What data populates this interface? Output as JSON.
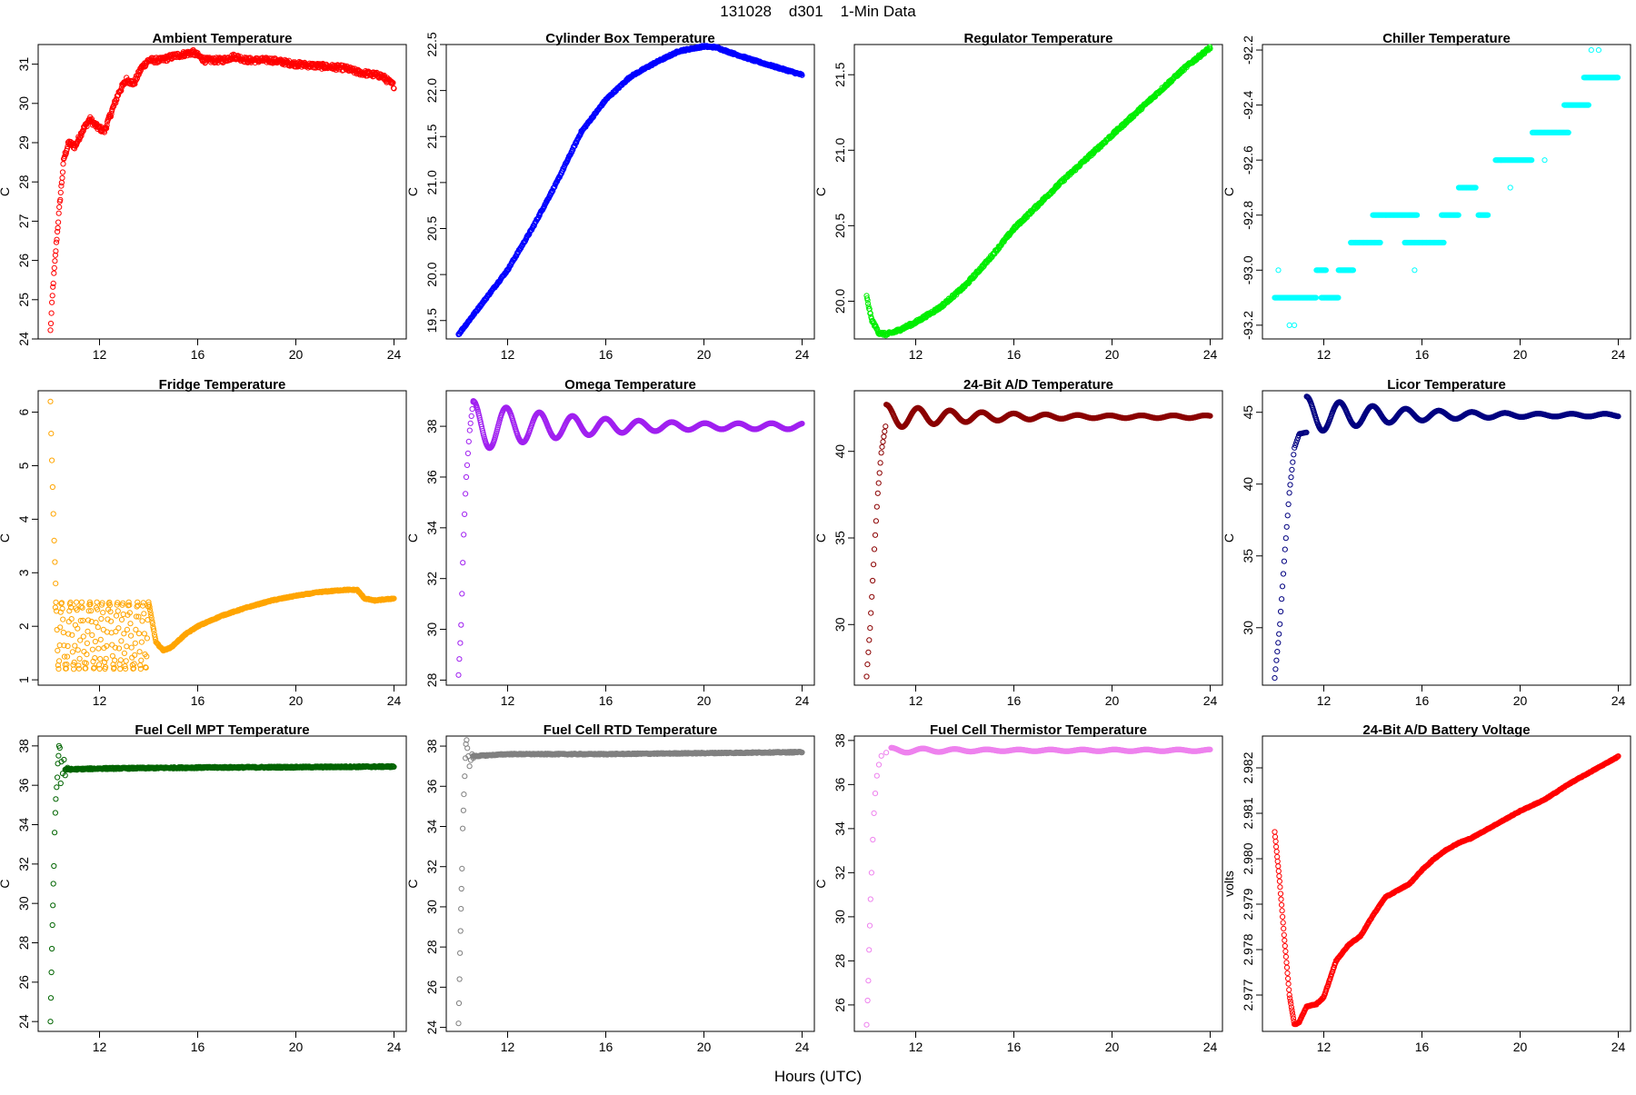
{
  "figure": {
    "title": "131028    d301    1-Min Data",
    "xlabel": "Hours (UTC)"
  },
  "chart_data": [
    {
      "type": "scatter",
      "title": "Ambient Temperature",
      "ylabel": "C",
      "color": "#ff0000",
      "xlim": [
        9.5,
        24.5
      ],
      "ylim": [
        24.0,
        31.5
      ],
      "xticks": [
        12,
        16,
        20,
        24
      ],
      "yticks": [
        24,
        25,
        26,
        27,
        28,
        29,
        30,
        31
      ],
      "anchors": [
        [
          10,
          24.2
        ],
        [
          10.1,
          25.3
        ],
        [
          10.25,
          26.5
        ],
        [
          10.4,
          27.6
        ],
        [
          10.55,
          28.6
        ],
        [
          10.75,
          29.0
        ],
        [
          11.0,
          28.9
        ],
        [
          11.3,
          29.3
        ],
        [
          11.6,
          29.6
        ],
        [
          11.9,
          29.4
        ],
        [
          12.2,
          29.3
        ],
        [
          12.5,
          29.8
        ],
        [
          12.8,
          30.3
        ],
        [
          13.1,
          30.6
        ],
        [
          13.4,
          30.5
        ],
        [
          13.7,
          30.9
        ],
        [
          14.0,
          31.1
        ],
        [
          14.5,
          31.1
        ],
        [
          15.0,
          31.2
        ],
        [
          15.8,
          31.3
        ],
        [
          16.3,
          31.1
        ],
        [
          17.0,
          31.1
        ],
        [
          17.5,
          31.2
        ],
        [
          18.0,
          31.1
        ],
        [
          19.0,
          31.1
        ],
        [
          20.0,
          31.0
        ],
        [
          21.0,
          30.95
        ],
        [
          22.0,
          30.9
        ],
        [
          22.5,
          30.8
        ],
        [
          23.0,
          30.75
        ],
        [
          23.5,
          30.7
        ],
        [
          24.0,
          30.45
        ]
      ],
      "noise": 0.07
    },
    {
      "type": "scatter",
      "title": "Cylinder Box Temperature",
      "ylabel": "C",
      "color": "#0000ff",
      "xlim": [
        9.5,
        24.5
      ],
      "ylim": [
        19.3,
        22.5
      ],
      "xticks": [
        12,
        16,
        20,
        24
      ],
      "yticks": [
        19.5,
        20.0,
        20.5,
        21.0,
        21.5,
        22.0,
        22.5
      ],
      "yticklabels": [
        "19.5",
        "20.0",
        "20.5",
        "21.0",
        "21.5",
        "22.0",
        "22.5"
      ],
      "anchors": [
        [
          10,
          19.35
        ],
        [
          11,
          19.7
        ],
        [
          12,
          20.05
        ],
        [
          13,
          20.5
        ],
        [
          14,
          21.0
        ],
        [
          15,
          21.55
        ],
        [
          16,
          21.9
        ],
        [
          17,
          22.15
        ],
        [
          18,
          22.3
        ],
        [
          19,
          22.43
        ],
        [
          20,
          22.48
        ],
        [
          20.5,
          22.47
        ],
        [
          21,
          22.42
        ],
        [
          22,
          22.33
        ],
        [
          23,
          22.25
        ],
        [
          24,
          22.17
        ]
      ],
      "noise": 0.01
    },
    {
      "type": "scatter",
      "title": "Regulator Temperature",
      "ylabel": "C",
      "color": "#00ee00",
      "xlim": [
        9.5,
        24.5
      ],
      "ylim": [
        19.75,
        21.7
      ],
      "xticks": [
        12,
        16,
        20,
        24
      ],
      "yticks": [
        20.0,
        20.5,
        21.0,
        21.5
      ],
      "yticklabels": [
        "20.0",
        "20.5",
        "21.0",
        "21.5"
      ],
      "anchors": [
        [
          10,
          20.03
        ],
        [
          10.2,
          19.88
        ],
        [
          10.5,
          19.79
        ],
        [
          10.8,
          19.78
        ],
        [
          11.2,
          19.8
        ],
        [
          12,
          19.86
        ],
        [
          13,
          19.96
        ],
        [
          14,
          20.1
        ],
        [
          15,
          20.28
        ],
        [
          16,
          20.48
        ],
        [
          17,
          20.64
        ],
        [
          18,
          20.8
        ],
        [
          19,
          20.95
        ],
        [
          20,
          21.1
        ],
        [
          21,
          21.25
        ],
        [
          22,
          21.4
        ],
        [
          23,
          21.55
        ],
        [
          24,
          21.68
        ]
      ],
      "noise": 0.01
    },
    {
      "type": "scatter",
      "title": "Chiller Temperature",
      "ylabel": "C",
      "color": "#00ffff",
      "xlim": [
        9.5,
        24.5
      ],
      "ylim": [
        -93.25,
        -92.18
      ],
      "xticks": [
        12,
        16,
        20,
        24
      ],
      "yticks": [
        -93.2,
        -93.0,
        -92.8,
        -92.6,
        -92.4,
        -92.2
      ],
      "yticklabels": [
        "-93.2",
        "-93.0",
        "-92.8",
        "-92.6",
        "-92.4",
        "-92.2"
      ],
      "steps": [
        [
          10,
          11.7,
          -93.1
        ],
        [
          11.9,
          12.6,
          -93.1
        ],
        [
          11.7,
          12.1,
          -93.0
        ],
        [
          12.6,
          13.2,
          -93.0
        ],
        [
          13.1,
          14.3,
          -92.9
        ],
        [
          14.0,
          15.8,
          -92.8
        ],
        [
          15.3,
          16.9,
          -92.9
        ],
        [
          16.8,
          17.5,
          -92.8
        ],
        [
          17.5,
          18.2,
          -92.7
        ],
        [
          18.3,
          18.7,
          -92.8
        ],
        [
          19.0,
          20.5,
          -92.6
        ],
        [
          20.5,
          22.0,
          -92.5
        ],
        [
          21.8,
          22.8,
          -92.4
        ],
        [
          22.6,
          24,
          -92.3
        ]
      ],
      "outliers": [
        [
          10.15,
          -93.0
        ],
        [
          10.6,
          -93.2
        ],
        [
          10.8,
          -93.2
        ],
        [
          22.9,
          -92.2
        ],
        [
          23.2,
          -92.2
        ],
        [
          15.7,
          -93.0
        ],
        [
          19.6,
          -92.7
        ],
        [
          21.0,
          -92.6
        ]
      ]
    },
    {
      "type": "scatter",
      "title": "Fridge Temperature",
      "ylabel": "C",
      "color": "#ffa500",
      "xlim": [
        9.5,
        24.5
      ],
      "ylim": [
        0.9,
        6.4
      ],
      "xticks": [
        12,
        16,
        20,
        24
      ],
      "yticks": [
        1,
        2,
        3,
        4,
        5,
        6
      ],
      "initial": [
        [
          10,
          6.2
        ],
        [
          10.03,
          5.6
        ],
        [
          10.06,
          5.1
        ],
        [
          10.09,
          4.6
        ],
        [
          10.12,
          4.1
        ],
        [
          10.15,
          3.6
        ],
        [
          10.18,
          3.2
        ],
        [
          10.21,
          2.8
        ]
      ],
      "band": [
        10.2,
        14.0,
        1.2,
        2.45
      ],
      "anchors": [
        [
          14.0,
          2.45
        ],
        [
          14.3,
          1.7
        ],
        [
          14.6,
          1.55
        ],
        [
          14.9,
          1.6
        ],
        [
          15.5,
          1.85
        ],
        [
          16,
          2.0
        ],
        [
          17,
          2.2
        ],
        [
          18,
          2.35
        ],
        [
          19,
          2.48
        ],
        [
          20,
          2.57
        ],
        [
          21,
          2.64
        ],
        [
          22,
          2.68
        ],
        [
          22.5,
          2.68
        ],
        [
          22.8,
          2.52
        ],
        [
          23.2,
          2.48
        ],
        [
          24,
          2.52
        ]
      ],
      "noise": 0.01
    },
    {
      "type": "scatter",
      "title": "Omega Temperature",
      "ylabel": "C",
      "color": "#a020f0",
      "xlim": [
        9.5,
        24.5
      ],
      "ylim": [
        27.8,
        39.4
      ],
      "xticks": [
        12,
        16,
        20,
        24
      ],
      "yticks": [
        28,
        30,
        32,
        34,
        36,
        38
      ],
      "rise": [
        [
          10,
          28.2
        ],
        [
          10.1,
          30.0
        ],
        [
          10.2,
          33.5
        ],
        [
          10.3,
          35.8
        ],
        [
          10.45,
          37.8
        ],
        [
          10.6,
          39.0
        ]
      ],
      "damped": {
        "base": 38.0,
        "amp": 1.0,
        "period": 1.35,
        "decay": 4.5,
        "start": 10.6,
        "floor": 0.12
      }
    },
    {
      "type": "scatter",
      "title": "24-Bit A/D Temperature",
      "ylabel": "C",
      "color": "#8b0000",
      "xlim": [
        9.5,
        24.5
      ],
      "ylim": [
        26.5,
        43.5
      ],
      "xticks": [
        12,
        16,
        20,
        24
      ],
      "yticks": [
        30,
        35,
        40
      ],
      "rise": [
        [
          10,
          27.0
        ],
        [
          10.15,
          30.0
        ],
        [
          10.3,
          34.0
        ],
        [
          10.45,
          37.5
        ],
        [
          10.6,
          40.0
        ],
        [
          10.8,
          41.7
        ]
      ],
      "damped": {
        "base": 42.0,
        "amp": 0.7,
        "period": 1.3,
        "decay": 4.0,
        "start": 10.8,
        "floor": 0.08
      }
    },
    {
      "type": "scatter",
      "title": "Licor Temperature",
      "ylabel": "C",
      "color": "#000080",
      "xlim": [
        9.5,
        24.5
      ],
      "ylim": [
        26.0,
        46.5
      ],
      "xticks": [
        12,
        16,
        20,
        24
      ],
      "yticks": [
        30,
        35,
        40,
        45
      ],
      "rise": [
        [
          10,
          26.5
        ],
        [
          10.2,
          30.0
        ],
        [
          10.4,
          35.0
        ],
        [
          10.6,
          39.5
        ],
        [
          10.8,
          42.5
        ],
        [
          11.0,
          43.5
        ],
        [
          11.3,
          43.6
        ]
      ],
      "damped": {
        "base": 44.8,
        "amp": 1.3,
        "period": 1.35,
        "decay": 3.8,
        "start": 11.3,
        "floor": 0.1
      }
    },
    {
      "type": "scatter",
      "title": "Fuel Cell MPT Temperature",
      "ylabel": "C",
      "color": "#006400",
      "xlim": [
        9.5,
        24.5
      ],
      "ylim": [
        23.5,
        38.5
      ],
      "xticks": [
        12,
        16,
        20,
        24
      ],
      "yticks": [
        24,
        26,
        28,
        30,
        32,
        34,
        36,
        38
      ],
      "initial": [
        [
          10,
          24.0
        ],
        [
          10.02,
          25.2
        ],
        [
          10.04,
          26.5
        ],
        [
          10.06,
          27.7
        ],
        [
          10.08,
          28.9
        ],
        [
          10.1,
          29.9
        ],
        [
          10.12,
          31.0
        ],
        [
          10.14,
          31.9
        ],
        [
          10.17,
          33.6
        ],
        [
          10.2,
          34.6
        ],
        [
          10.22,
          35.3
        ],
        [
          10.25,
          35.9
        ],
        [
          10.28,
          36.4
        ],
        [
          10.3,
          37.1
        ],
        [
          10.33,
          37.5
        ],
        [
          10.35,
          38.0
        ],
        [
          10.38,
          37.9
        ],
        [
          10.42,
          36.1
        ],
        [
          10.45,
          37.2
        ],
        [
          10.5,
          36.6
        ],
        [
          10.55,
          37.3
        ],
        [
          10.6,
          36.5
        ],
        [
          10.7,
          36.9
        ]
      ],
      "anchors": [
        [
          10.6,
          36.8
        ],
        [
          12,
          36.85
        ],
        [
          16,
          36.9
        ],
        [
          20,
          36.92
        ],
        [
          24,
          36.95
        ]
      ],
      "noise": 0.04
    },
    {
      "type": "scatter",
      "title": "Fuel Cell RTD Temperature",
      "ylabel": "C",
      "color": "#808080",
      "xlim": [
        9.5,
        24.5
      ],
      "ylim": [
        23.8,
        38.5
      ],
      "xticks": [
        12,
        16,
        20,
        24
      ],
      "yticks": [
        24,
        26,
        28,
        30,
        32,
        34,
        36,
        38
      ],
      "initial": [
        [
          10,
          24.2
        ],
        [
          10.02,
          25.2
        ],
        [
          10.04,
          26.4
        ],
        [
          10.06,
          27.7
        ],
        [
          10.08,
          28.8
        ],
        [
          10.1,
          29.9
        ],
        [
          10.12,
          30.9
        ],
        [
          10.14,
          31.9
        ],
        [
          10.17,
          33.9
        ],
        [
          10.2,
          34.8
        ],
        [
          10.22,
          35.6
        ],
        [
          10.25,
          36.5
        ],
        [
          10.28,
          37.4
        ],
        [
          10.3,
          38.1
        ],
        [
          10.33,
          38.3
        ],
        [
          10.36,
          37.9
        ],
        [
          10.4,
          37.5
        ],
        [
          10.45,
          37.0
        ],
        [
          10.5,
          37.3
        ],
        [
          10.55,
          37.6
        ],
        [
          10.6,
          37.4
        ],
        [
          10.7,
          37.5
        ]
      ],
      "anchors": [
        [
          10.6,
          37.5
        ],
        [
          12,
          37.6
        ],
        [
          16,
          37.6
        ],
        [
          20,
          37.65
        ],
        [
          24,
          37.7
        ]
      ],
      "noise": 0.03
    },
    {
      "type": "scatter",
      "title": "Fuel Cell Thermistor Temperature",
      "ylabel": "C",
      "color": "#ee82ee",
      "xlim": [
        9.5,
        24.5
      ],
      "ylim": [
        24.8,
        38.2
      ],
      "xticks": [
        12,
        16,
        20,
        24
      ],
      "yticks": [
        26,
        28,
        30,
        32,
        34,
        36,
        38
      ],
      "initial": [
        [
          10,
          25.1
        ],
        [
          10.04,
          26.2
        ],
        [
          10.07,
          27.1
        ],
        [
          10.1,
          28.5
        ],
        [
          10.13,
          29.6
        ],
        [
          10.16,
          30.8
        ],
        [
          10.2,
          32.0
        ],
        [
          10.25,
          33.5
        ],
        [
          10.3,
          34.7
        ],
        [
          10.35,
          35.6
        ],
        [
          10.42,
          36.4
        ],
        [
          10.5,
          36.9
        ],
        [
          10.6,
          37.3
        ],
        [
          10.8,
          37.45
        ]
      ],
      "damped": {
        "base": 37.55,
        "amp": 0.12,
        "period": 1.3,
        "decay": 4.0,
        "start": 11.0,
        "floor": 0.04
      }
    },
    {
      "type": "scatter",
      "title": "24-Bit A/D Battery Voltage",
      "ylabel": "volts",
      "color": "#ff0000",
      "xlim": [
        9.5,
        24.5
      ],
      "ylim": [
        2.9762,
        2.9827
      ],
      "xticks": [
        12,
        16,
        20,
        24
      ],
      "yticks": [
        2.977,
        2.978,
        2.979,
        2.98,
        2.981,
        2.982
      ],
      "yticklabels": [
        "2.977",
        "2.978",
        "2.979",
        "2.980",
        "2.981",
        "2.982"
      ],
      "anchors": [
        [
          10,
          2.9806
        ],
        [
          10.2,
          2.9795
        ],
        [
          10.4,
          2.9782
        ],
        [
          10.6,
          2.977
        ],
        [
          10.8,
          2.97635
        ],
        [
          11.0,
          2.9764
        ],
        [
          11.3,
          2.97675
        ],
        [
          11.7,
          2.9768
        ],
        [
          12.0,
          2.97695
        ],
        [
          12.5,
          2.97775
        ],
        [
          13.0,
          2.9781
        ],
        [
          13.5,
          2.9783
        ],
        [
          14.0,
          2.97875
        ],
        [
          14.5,
          2.97915
        ],
        [
          15.0,
          2.9793
        ],
        [
          15.5,
          2.97945
        ],
        [
          16.0,
          2.97975
        ],
        [
          16.5,
          2.98
        ],
        [
          17.0,
          2.9802
        ],
        [
          17.5,
          2.98035
        ],
        [
          18.0,
          2.98045
        ],
        [
          18.5,
          2.9806
        ],
        [
          19.0,
          2.98075
        ],
        [
          19.5,
          2.9809
        ],
        [
          20.0,
          2.98105
        ],
        [
          21.0,
          2.9813
        ],
        [
          22.0,
          2.98165
        ],
        [
          23.0,
          2.98195
        ],
        [
          24.0,
          2.98225
        ]
      ],
      "noise": 1e-05
    }
  ]
}
